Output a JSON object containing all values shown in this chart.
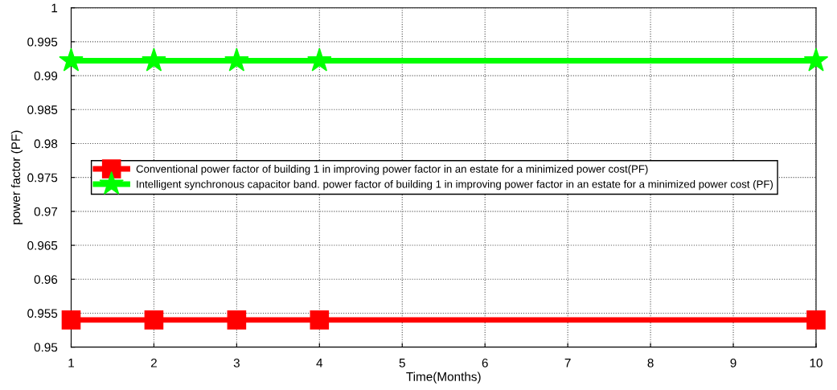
{
  "chart_data": {
    "type": "line",
    "xlabel": "Time(Months)",
    "ylabel": "power factor (PF)",
    "x": [
      1,
      2,
      3,
      4,
      10
    ],
    "series": [
      {
        "name": "Conventional power factor of building 1 in improving power factor in an estate for a minimized power cost(PF)",
        "color": "#ff0000",
        "marker": "square",
        "values": [
          0.954,
          0.954,
          0.954,
          0.954,
          0.954
        ]
      },
      {
        "name": "Intelligent synchronous capacitor band. power factor of building 1 in improving power factor in an estate for a minimized power cost (PF)",
        "color": "#00ff00",
        "marker": "star",
        "values": [
          0.9922,
          0.9922,
          0.9922,
          0.9922,
          0.9922
        ]
      }
    ],
    "xlim": [
      1,
      10
    ],
    "xticks": [
      1,
      2,
      3,
      4,
      5,
      6,
      7,
      8,
      9,
      10
    ],
    "ylim": [
      0.95,
      1
    ],
    "yticks": [
      0.95,
      0.955,
      0.96,
      0.965,
      0.97,
      0.975,
      0.98,
      0.985,
      0.99,
      0.995,
      1
    ],
    "grid": true,
    "legend": "center left",
    "line_style": "solid"
  }
}
